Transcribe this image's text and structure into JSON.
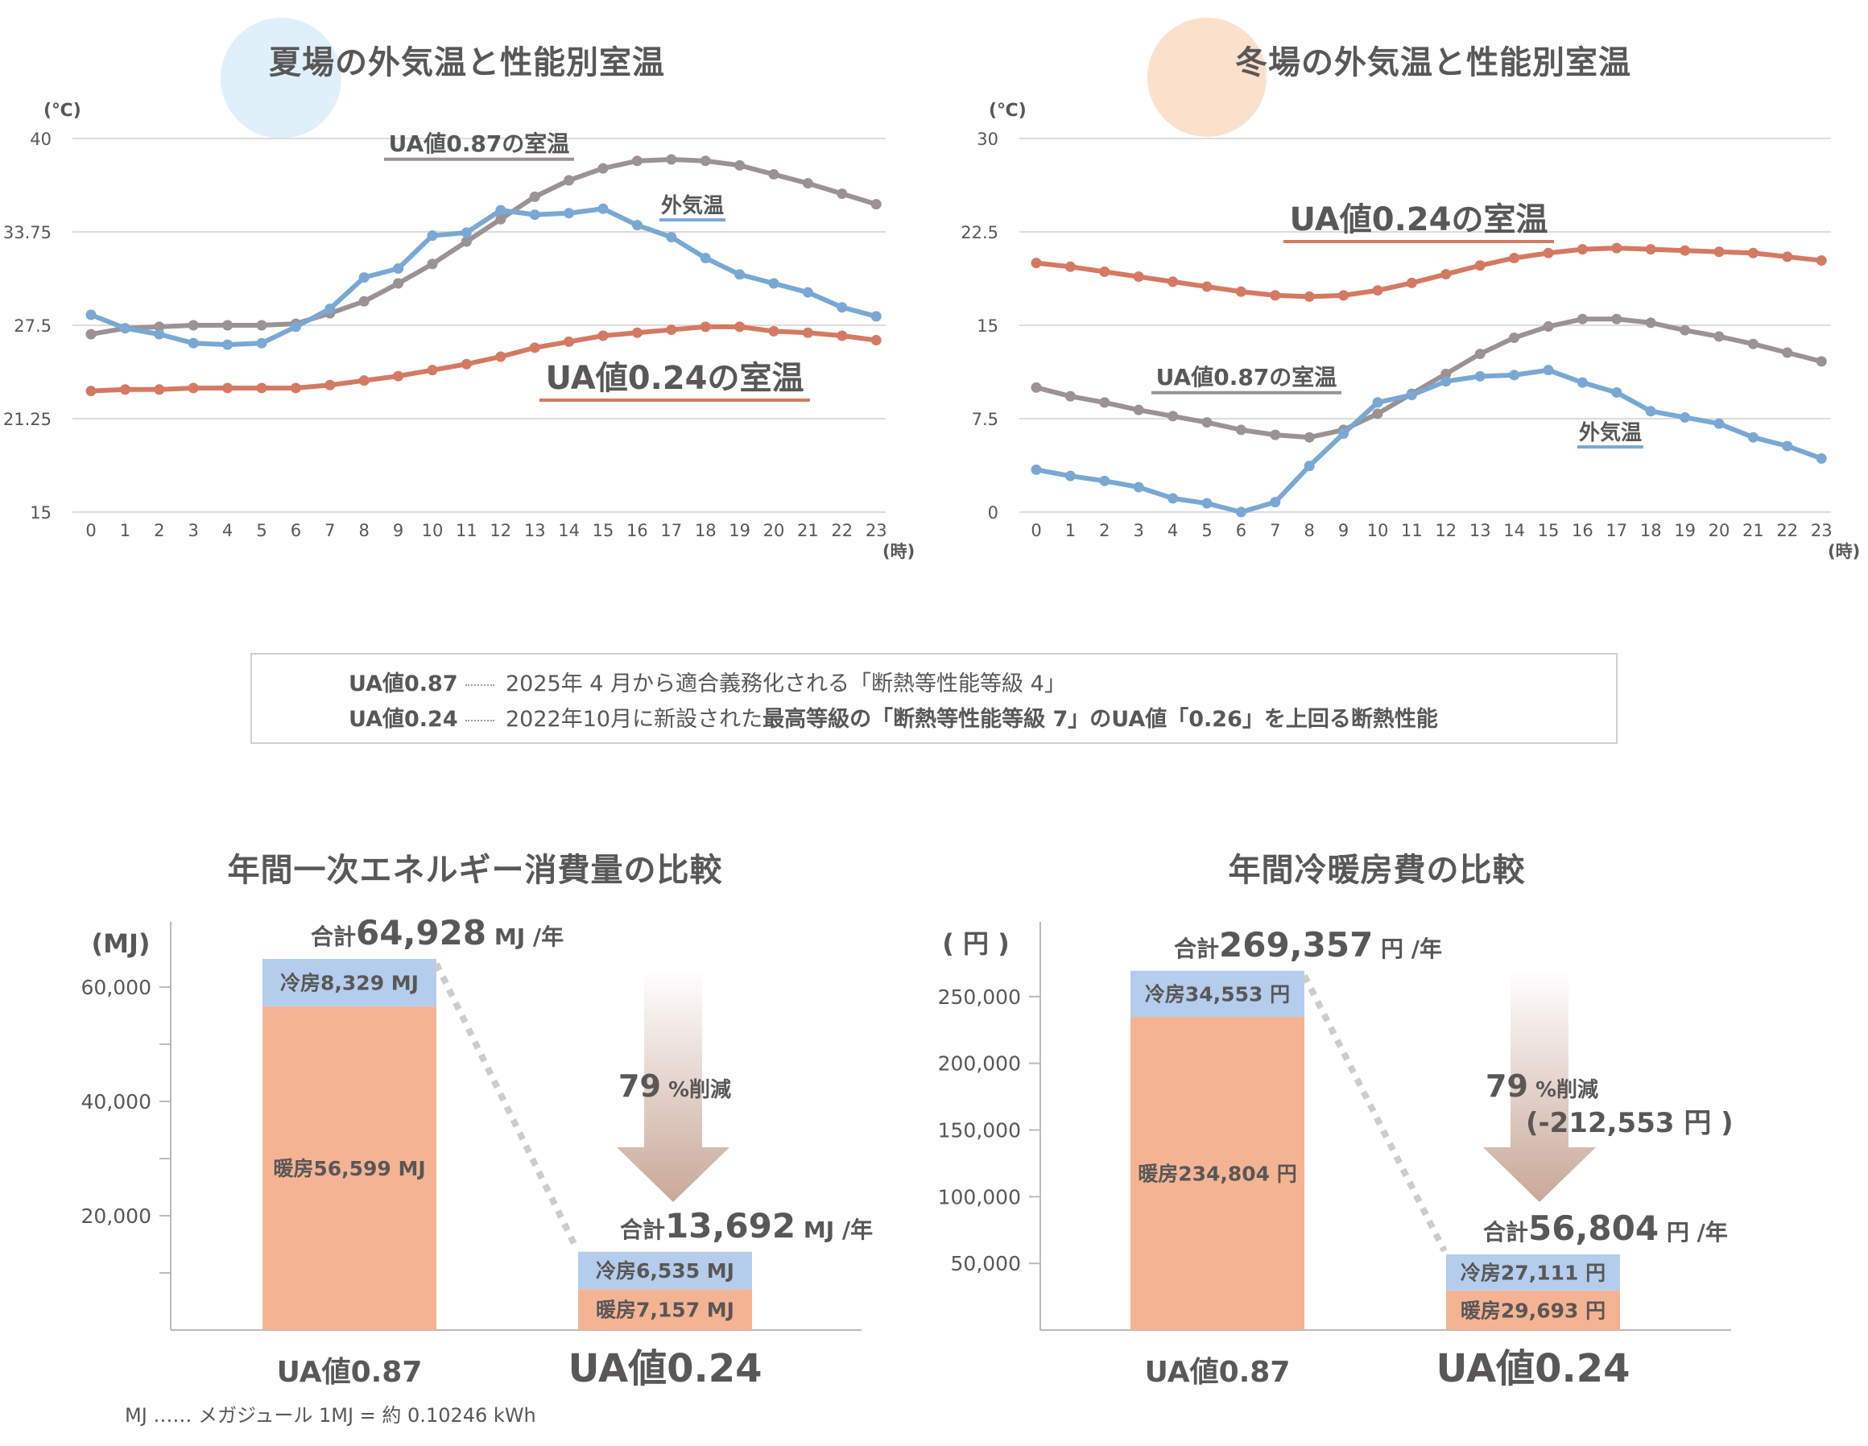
{
  "colors": {
    "outdoor": "#79a8d4",
    "ua087": "#9c9293",
    "ua024": "#d47a62",
    "cooling": "#b5cdec",
    "heating": "#f4b493",
    "grid": "#dddddd",
    "text": "#595757"
  },
  "summer": {
    "title": "夏場の外気温と性能別室温",
    "unit": "(℃)",
    "hour_unit": "(時)",
    "label_ua087": "UA値0.87の室温",
    "label_outdoor": "外気温",
    "label_ua024": "UA値0.24の室温"
  },
  "winter": {
    "title": "冬場の外気温と性能別室温",
    "unit": "(℃)",
    "hour_unit": "(時)",
    "label_ua087": "UA値0.87の室温",
    "label_outdoor": "外気温",
    "label_ua024": "UA値0.24の室温"
  },
  "note": {
    "row1_key": "UA値0.87",
    "row1_text": "2025年 4 月から適合義務化される「断熱等性能等級 4」",
    "row2_key": "UA値0.24",
    "row2_text": "2022年10月に新設された",
    "row2_bold": "最高等級の「断熱等性能等級 7」のUA値「0.26」を上回る断熱性能"
  },
  "energy": {
    "title": "年間一次エネルギー消費量の比較",
    "unit": "(MJ)",
    "total_087_prefix": "合計",
    "total_087_value": "64,928",
    "total_087_suffix": "MJ /年",
    "total_024_prefix": "合計",
    "total_024_value": "13,692",
    "total_024_suffix": "MJ /年",
    "cool_087": "冷房8,329 MJ",
    "heat_087": "暖房56,599 MJ",
    "cool_024": "冷房6,535 MJ",
    "heat_024": "暖房7,157 MJ",
    "reduction_value": "79",
    "reduction_suffix": "%削減",
    "cat_087": "UA値0.87",
    "cat_024": "UA値0.24",
    "footnote": "MJ …… メガジュール 1MJ = 約 0.10246 kWh"
  },
  "cost": {
    "title": "年間冷暖房費の比較",
    "unit": "( 円 )",
    "total_087_prefix": "合計",
    "total_087_value": "269,357",
    "total_087_suffix": "円 /年",
    "total_024_prefix": "合計",
    "total_024_value": "56,804",
    "total_024_suffix": "円 /年",
    "cool_087": "冷房34,553 円",
    "heat_087": "暖房234,804 円",
    "cool_024": "冷房27,111 円",
    "heat_024": "暖房29,693 円",
    "reduction_value": "79",
    "reduction_suffix": "%削減",
    "reduction_amount": "(-212,553 円 )",
    "cat_087": "UA値0.87",
    "cat_024": "UA値0.24"
  },
  "chart_data": [
    {
      "type": "line",
      "title": "夏場の外気温と性能別室温",
      "ylabel": "(℃)",
      "xlabel": "(時)",
      "ylim": [
        15,
        40
      ],
      "yticks": [
        "15",
        "21.25",
        "27.5",
        "33.75",
        "40"
      ],
      "x": [
        0,
        1,
        2,
        3,
        4,
        5,
        6,
        7,
        8,
        9,
        10,
        11,
        12,
        13,
        14,
        15,
        16,
        17,
        18,
        19,
        20,
        21,
        22,
        23
      ],
      "series": [
        {
          "name": "外気温",
          "values": [
            28.2,
            27.3,
            26.9,
            26.3,
            26.2,
            26.3,
            27.4,
            28.6,
            30.7,
            31.3,
            33.5,
            33.7,
            35.2,
            34.9,
            35.0,
            35.3,
            34.2,
            33.4,
            32.0,
            30.9,
            30.3,
            29.7,
            28.7,
            28.1
          ]
        },
        {
          "name": "UA値0.87の室温",
          "values": [
            26.9,
            27.3,
            27.4,
            27.5,
            27.5,
            27.5,
            27.6,
            28.3,
            29.1,
            30.3,
            31.6,
            33.1,
            34.6,
            36.1,
            37.2,
            38.0,
            38.5,
            38.6,
            38.5,
            38.2,
            37.6,
            37.0,
            36.3,
            35.6
          ]
        },
        {
          "name": "UA値0.24の室温",
          "values": [
            23.1,
            23.2,
            23.2,
            23.3,
            23.3,
            23.3,
            23.3,
            23.5,
            23.8,
            24.1,
            24.5,
            24.9,
            25.4,
            26.0,
            26.4,
            26.8,
            27.0,
            27.2,
            27.4,
            27.4,
            27.1,
            27.0,
            26.8,
            26.5
          ]
        }
      ]
    },
    {
      "type": "line",
      "title": "冬場の外気温と性能別室温",
      "ylabel": "(℃)",
      "xlabel": "(時)",
      "ylim": [
        0,
        30
      ],
      "yticks": [
        "0",
        "7.5",
        "15",
        "22.5",
        "30"
      ],
      "x": [
        0,
        1,
        2,
        3,
        4,
        5,
        6,
        7,
        8,
        9,
        10,
        11,
        12,
        13,
        14,
        15,
        16,
        17,
        18,
        19,
        20,
        21,
        22,
        23
      ],
      "series": [
        {
          "name": "外気温",
          "values": [
            3.4,
            2.9,
            2.5,
            2.0,
            1.1,
            0.7,
            0.0,
            0.8,
            3.7,
            6.3,
            8.8,
            9.4,
            10.5,
            10.9,
            11.0,
            11.4,
            10.4,
            9.6,
            8.1,
            7.6,
            7.1,
            6.0,
            5.3,
            4.3
          ]
        },
        {
          "name": "UA値0.87の室温",
          "values": [
            10.0,
            9.3,
            8.8,
            8.2,
            7.7,
            7.2,
            6.6,
            6.2,
            6.0,
            6.6,
            7.9,
            9.5,
            11.1,
            12.7,
            14.0,
            14.9,
            15.5,
            15.5,
            15.2,
            14.6,
            14.1,
            13.5,
            12.8,
            12.1
          ]
        },
        {
          "name": "UA値0.24の室温",
          "values": [
            20.0,
            19.7,
            19.3,
            18.9,
            18.5,
            18.1,
            17.7,
            17.4,
            17.3,
            17.4,
            17.8,
            18.4,
            19.1,
            19.8,
            20.4,
            20.8,
            21.1,
            21.2,
            21.1,
            21.0,
            20.9,
            20.8,
            20.5,
            20.2
          ]
        }
      ]
    },
    {
      "type": "bar",
      "stacked": true,
      "title": "年間一次エネルギー消費量の比較",
      "ylabel": "(MJ)",
      "ylim": [
        0,
        70000
      ],
      "yticks": [
        "20,000",
        "40,000",
        "60,000"
      ],
      "categories": [
        "UA値0.87",
        "UA値0.24"
      ],
      "series": [
        {
          "name": "暖房",
          "values": [
            56599,
            7157
          ]
        },
        {
          "name": "冷房",
          "values": [
            8329,
            6535
          ]
        }
      ],
      "totals": [
        64928,
        13692
      ]
    },
    {
      "type": "bar",
      "stacked": true,
      "title": "年間冷暖房費の比較",
      "ylabel": "( 円 )",
      "ylim": [
        0,
        300000
      ],
      "yticks": [
        "50,000",
        "100,000",
        "150,000",
        "200,000",
        "250,000"
      ],
      "categories": [
        "UA値0.87",
        "UA値0.24"
      ],
      "series": [
        {
          "name": "暖房",
          "values": [
            234804,
            29693
          ]
        },
        {
          "name": "冷房",
          "values": [
            34553,
            27111
          ]
        }
      ],
      "totals": [
        269357,
        56804
      ]
    }
  ]
}
